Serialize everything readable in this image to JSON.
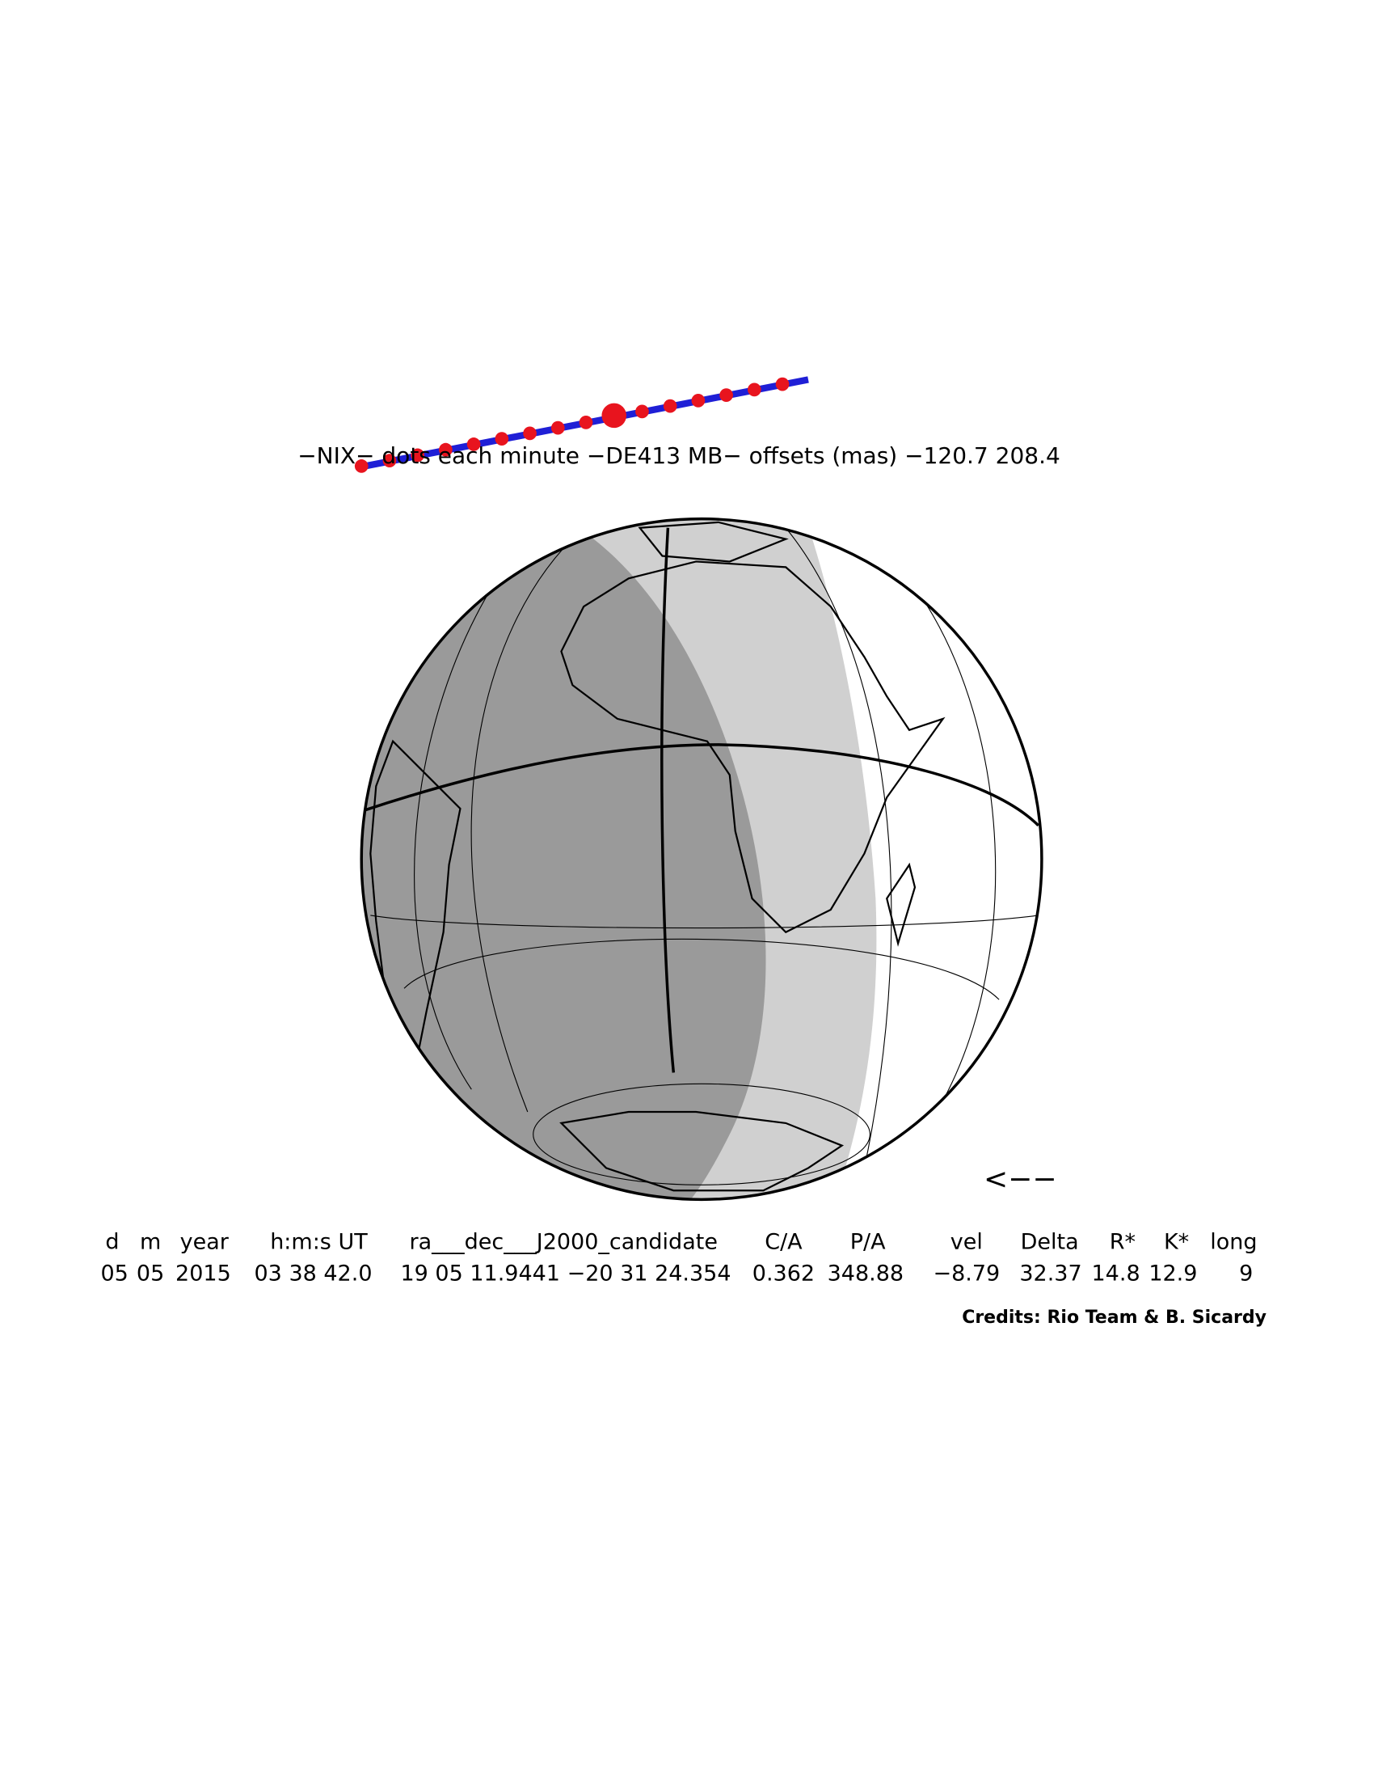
{
  "title": "−NIX− dots each minute −DE413 MB− offsets (mas) −120.7   208.4",
  "direction_arrow": "<−−",
  "table": {
    "headers": [
      "d",
      "m",
      "year",
      "h:m:s UT",
      "ra___dec___J2000_candidate",
      "C/A",
      "P/A",
      "vel",
      "Delta",
      "R*",
      "K*",
      "long"
    ],
    "row": [
      "05",
      "05",
      "2015",
      "03 38 42.0",
      "19 05 11.9441 −20 31 24.354",
      "0.362",
      "348.88",
      "−8.79",
      "32.37",
      "14.8",
      "12.9",
      "9"
    ]
  },
  "credits": "Credits: Rio Team & B. Sicardy"
}
